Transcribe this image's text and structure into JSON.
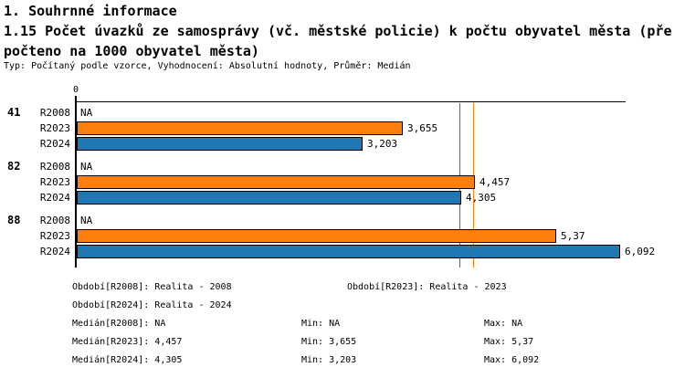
{
  "header": {
    "line1": "1. Souhrnné informace",
    "line2": "1.15 Počet úvazků ze samosprávy (vč. městské policie) k počtu obyvatel města (pře",
    "line3": "počteno na 1000 obyvatel města)",
    "line4": "Typ: Počítaný podle vzorce, Vyhodnocení: Absolutní hodnoty, Průměr: Medián"
  },
  "chart_data": {
    "type": "bar",
    "orientation": "horizontal",
    "categories": [
      "41",
      "82",
      "88"
    ],
    "series": [
      {
        "name": "R2008",
        "color": null,
        "values": [
          null,
          null,
          null
        ],
        "labels": [
          "NA",
          "NA",
          "NA"
        ]
      },
      {
        "name": "R2023",
        "color": "#ff7f0e",
        "values": [
          3.655,
          4.457,
          5.37
        ],
        "labels": [
          "3,655",
          "4,457",
          "5,37"
        ]
      },
      {
        "name": "R2024",
        "color": "#1f77b4",
        "values": [
          3.203,
          4.305,
          6.092
        ],
        "labels": [
          "3,203",
          "4,305",
          "6,092"
        ]
      }
    ],
    "xlim": [
      0,
      6.16
    ],
    "x_ticks": [
      {
        "value": 0,
        "label": "0"
      }
    ],
    "reference_lines": [
      {
        "name": "median-r2023",
        "value": 4.457,
        "color": "#ff7f0e"
      },
      {
        "name": "median-r2024",
        "value": 4.305,
        "color": "#1f77b4"
      }
    ],
    "bar_border_color": "#000000",
    "na_text": "NA",
    "legend_position": "none",
    "grid": false
  },
  "footer": {
    "obdobi_r2008": "Období[R2008]: Realita - 2008",
    "obdobi_r2023": "Období[R2023]: Realita - 2023",
    "obdobi_r2024": "Období[R2024]: Realita - 2024",
    "median_r2008": "Medián[R2008]: NA",
    "median_r2023": "Medián[R2023]: 4,457",
    "median_r2024": "Medián[R2024]: 4,305",
    "min_r2008": "Min: NA",
    "min_r2023": "Min: 3,655",
    "min_r2024": "Min: 3,203",
    "max_r2008": "Max: NA",
    "max_r2023": "Max: 5,37",
    "max_r2024": "Max: 6,092"
  }
}
